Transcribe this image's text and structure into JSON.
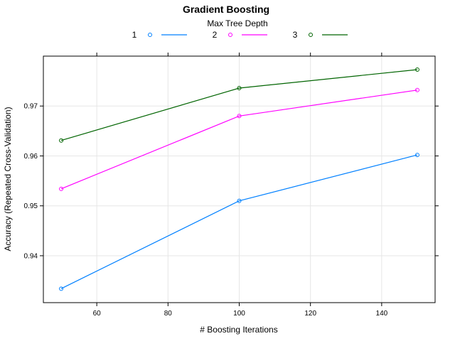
{
  "chart_data": {
    "type": "line",
    "title": "Gradient Boosting",
    "xlabel": "# Boosting Iterations",
    "ylabel": "Accuracy (Repeated Cross-Validation)",
    "legend": {
      "title": "Max Tree Depth",
      "placement": "top"
    },
    "x": [
      50,
      100,
      150
    ],
    "xlim": [
      45,
      155
    ],
    "ylim": [
      0.9306,
      0.98
    ],
    "xticks": [
      60,
      80,
      100,
      120,
      140
    ],
    "yticks": [
      0.94,
      0.95,
      0.96,
      0.97
    ],
    "xtick_labels": [
      "60",
      "80",
      "100",
      "120",
      "140"
    ],
    "ytick_labels": [
      "0.94",
      "0.95",
      "0.96",
      "0.97"
    ],
    "grid": true,
    "series": [
      {
        "name": "1",
        "color": "#0080ff",
        "values": [
          0.9334,
          0.951,
          0.9602
        ]
      },
      {
        "name": "2",
        "color": "#ff00ff",
        "values": [
          0.9534,
          0.968,
          0.9732
        ]
      },
      {
        "name": "3",
        "color": "#006400",
        "values": [
          0.9631,
          0.9736,
          0.9773
        ]
      }
    ]
  }
}
